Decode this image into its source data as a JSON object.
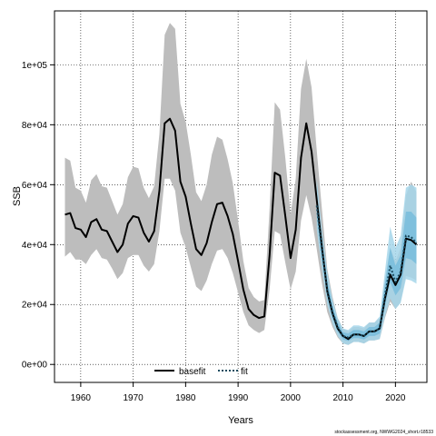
{
  "chart_data": {
    "type": "line",
    "xlabel": "Years",
    "ylabel": "SSB",
    "xlim": [
      1955,
      2026
    ],
    "ylim": [
      -6000,
      118000
    ],
    "x_ticks": [
      1960,
      1970,
      1980,
      1990,
      2000,
      2010,
      2020
    ],
    "y_ticks": [
      0,
      20000,
      40000,
      60000,
      80000,
      100000
    ],
    "y_tick_labels": [
      "0e+00",
      "2e+04",
      "4e+04",
      "6e+04",
      "8e+04",
      "1e+05"
    ],
    "grid": true,
    "grid_style": "dotted",
    "legend_position": "bottom-center",
    "colors": {
      "basefit_line": "#000000",
      "basefit_band": "#bdbdbd",
      "fit_line": "#1a4a5e",
      "fit_band_outer": "#a6d6ea",
      "fit_band_inner": "#6db8da"
    },
    "series": [
      {
        "name": "basefit",
        "style": "solid",
        "x": [
          1957,
          1958,
          1959,
          1960,
          1961,
          1962,
          1963,
          1964,
          1965,
          1966,
          1967,
          1968,
          1969,
          1970,
          1971,
          1972,
          1973,
          1974,
          1975,
          1976,
          1977,
          1978,
          1979,
          1980,
          1981,
          1982,
          1983,
          1984,
          1985,
          1986,
          1987,
          1988,
          1989,
          1990,
          1991,
          1992,
          1993,
          1994,
          1995,
          1996,
          1997,
          1998,
          1999,
          2000,
          2001,
          2002,
          2003,
          2004,
          2005,
          2006,
          2007,
          2008,
          2009,
          2010,
          2011,
          2012,
          2013,
          2014,
          2015,
          2016,
          2017,
          2018,
          2019,
          2020,
          2021,
          2022,
          2023,
          2024
        ],
        "y": [
          50000,
          50500,
          45500,
          45000,
          42500,
          47500,
          48500,
          45000,
          44500,
          41000,
          37500,
          40000,
          47000,
          49500,
          49000,
          44000,
          41000,
          44500,
          58000,
          80500,
          82000,
          78000,
          61000,
          56000,
          47000,
          38500,
          36500,
          40500,
          47500,
          53500,
          54000,
          49500,
          43500,
          34500,
          25000,
          18500,
          16500,
          15500,
          16000,
          36500,
          64000,
          63000,
          49500,
          35500,
          45000,
          69000,
          80500,
          71000,
          55000,
          39000,
          24500,
          17000,
          12000,
          9500,
          8500,
          10000,
          10000,
          9500,
          11000,
          11000,
          12000,
          22000,
          30000,
          26500,
          30000,
          42000,
          41500,
          40000
        ],
        "lower": [
          36000,
          37500,
          35000,
          35000,
          33500,
          36500,
          38500,
          35500,
          35000,
          32000,
          28500,
          30500,
          35500,
          36500,
          36500,
          33000,
          31000,
          33500,
          44500,
          62000,
          62000,
          58000,
          44000,
          39000,
          32500,
          26000,
          24500,
          28000,
          33500,
          38000,
          38500,
          35500,
          30500,
          24000,
          17500,
          13000,
          11500,
          10500,
          11500,
          25000,
          44500,
          43500,
          34000,
          25000,
          31000,
          48000,
          56500,
          49000,
          38500,
          27000,
          17500,
          12500,
          9000,
          7000,
          6500,
          7500,
          7500,
          7000,
          8000,
          8000,
          8500,
          15500,
          21000,
          18500,
          21000,
          29500,
          29000,
          28000
        ],
        "upper": [
          69000,
          68000,
          59000,
          58000,
          54000,
          61500,
          63500,
          59500,
          59000,
          54500,
          50000,
          53500,
          62500,
          66000,
          65500,
          59000,
          55500,
          59500,
          77000,
          110000,
          114000,
          112000,
          87000,
          81000,
          70000,
          57500,
          54500,
          60000,
          70000,
          76000,
          75000,
          68500,
          60500,
          48000,
          34500,
          25500,
          22500,
          21000,
          21500,
          52000,
          87500,
          85000,
          69000,
          50000,
          62000,
          92000,
          102000,
          92500,
          71500,
          51500,
          32000,
          22500,
          15500,
          12000,
          11000,
          12500,
          12500,
          12000,
          14000,
          14000,
          15500,
          28500,
          39000,
          34500,
          39000,
          56500,
          61000,
          57500
        ]
      },
      {
        "name": "fit",
        "style": "dotted",
        "x": [
          2005,
          2006,
          2007,
          2008,
          2009,
          2010,
          2011,
          2012,
          2013,
          2014,
          2015,
          2016,
          2017,
          2018,
          2019,
          2020,
          2021,
          2022,
          2023,
          2024
        ],
        "y": [
          53000,
          38000,
          25000,
          17500,
          12500,
          9500,
          9000,
          10000,
          10000,
          9500,
          11000,
          11000,
          12000,
          23000,
          33000,
          27500,
          31000,
          43000,
          42500,
          40500
        ],
        "lower_outer": [
          45000,
          31500,
          20000,
          13500,
          9500,
          7000,
          6500,
          7500,
          7500,
          7000,
          8000,
          8000,
          8500,
          16000,
          22000,
          18500,
          20500,
          28500,
          28000,
          27000
        ],
        "upper_outer": [
          62000,
          45000,
          31000,
          21500,
          15500,
          12000,
          11500,
          13000,
          13000,
          12500,
          14000,
          14000,
          16000,
          31000,
          46000,
          39000,
          43000,
          59000,
          60000,
          59000
        ],
        "lower_inner": [
          49500,
          35000,
          22500,
          15500,
          11000,
          8300,
          7800,
          8800,
          8800,
          8300,
          9500,
          9500,
          10300,
          19500,
          27500,
          23000,
          25500,
          35500,
          35000,
          33500
        ],
        "upper_inner": [
          57000,
          41500,
          28000,
          19500,
          14000,
          10800,
          10300,
          11500,
          11500,
          11000,
          12500,
          12500,
          14000,
          27000,
          39000,
          33000,
          36500,
          51000,
          51000,
          49000
        ]
      }
    ],
    "caption": "stockassessment.org, NWWG2024_short.r18533"
  }
}
